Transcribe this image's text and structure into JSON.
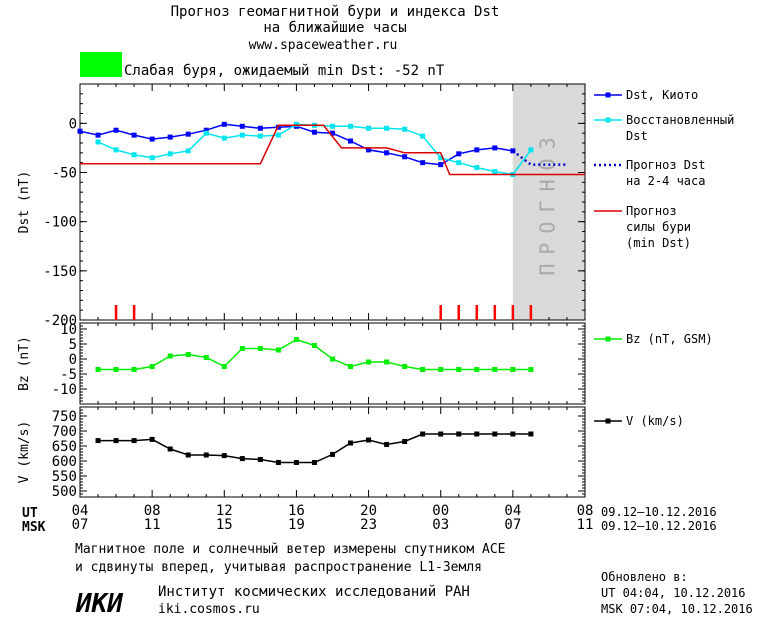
{
  "header": {
    "title_line1": "Прогноз геомагнитной бури и индекса Dst",
    "title_line2": "на ближайшие часы",
    "url": "www.spaceweather.ru",
    "status_color": "#00ff00",
    "status_text": "Слабая буря, ожидаемый min Dst: -52 nT"
  },
  "footer": {
    "note_line1": "Магнитное поле и солнечный ветер измерены спутником ACE",
    "note_line2": "и сдвинуты вперед, учитывая распространение L1-Земля",
    "institute_logo": "ИКИ",
    "institute_name": "Институт космических исследований РАН",
    "institute_url": "iki.cosmos.ru",
    "updated_label": "Обновлено в:",
    "updated_ut": "UT  04:04, 10.12.2016",
    "updated_msk": "MSK 07:04, 10.12.2016"
  },
  "time_axis": {
    "ut_label": "UT",
    "msk_label": "MSK",
    "ut_ticks": [
      "04",
      "08",
      "12",
      "16",
      "20",
      "00",
      "04",
      "08"
    ],
    "msk_ticks": [
      "07",
      "11",
      "15",
      "19",
      "23",
      "03",
      "07",
      "11"
    ],
    "ut_range": "09.12–10.12.2016",
    "msk_range": "09.12–10.12.2016"
  },
  "chart_data": {
    "type": "line",
    "x_units": "hours UT from 09.12.2016 04:00",
    "xlim": [
      0,
      28
    ],
    "forecast_region": [
      24,
      28
    ],
    "forecast_label": "ПРОГНОЗ",
    "panels": [
      {
        "id": "dst",
        "ylabel": "Dst (nT)",
        "ylim": [
          -200,
          40
        ],
        "yticks": [
          0,
          -50,
          -100,
          -150,
          -200
        ],
        "series": [
          {
            "name": "Dst, Киото",
            "color": "#0000ff",
            "marker": "square",
            "style": "solid",
            "x": [
              0,
              1,
              2,
              3,
              4,
              5,
              6,
              7,
              8,
              9,
              10,
              11,
              12,
              13,
              14,
              15,
              16,
              17,
              18,
              19,
              20,
              21,
              22,
              23,
              24
            ],
            "y": [
              -8,
              -12,
              -7,
              -12,
              -16,
              -14,
              -11,
              -7,
              -1,
              -3,
              -5,
              -4,
              -3,
              -9,
              -10,
              -18,
              -27,
              -30,
              -34,
              -40,
              -42,
              -31,
              -27,
              -25,
              -28
            ]
          },
          {
            "name": "Восстановленный Dst",
            "color": "#00e5ee",
            "marker": "square",
            "style": "solid",
            "x": [
              1,
              2,
              3,
              4,
              5,
              6,
              7,
              8,
              9,
              10,
              11,
              12,
              13,
              14,
              15,
              16,
              17,
              18,
              19,
              20,
              21,
              22,
              23,
              24,
              25
            ],
            "y": [
              -19,
              -27,
              -32,
              -35,
              -31,
              -28,
              -10,
              -15,
              -12,
              -13,
              -12,
              -1,
              -2,
              -3,
              -3,
              -5,
              -5,
              -6,
              -13,
              -35,
              -40,
              -45,
              -49,
              -52,
              -27
            ]
          },
          {
            "name": "Прогноз Dst на 2-4 часа",
            "color": "#0000cc",
            "marker": "none",
            "style": "dotted",
            "x": [
              24,
              25,
              26,
              27
            ],
            "y": [
              -28,
              -42,
              -42,
              -42
            ]
          },
          {
            "name": "Прогноз силы бури (min Dst)",
            "color": "#dd0000",
            "marker": "none",
            "style": "solid",
            "x": [
              0,
              10,
              11,
              13.5,
              14.5,
              17,
              18,
              20,
              20.5,
              28
            ],
            "y": [
              -41,
              -41,
              -2,
              -2,
              -25,
              -25,
              -30,
              -30,
              -52,
              -52
            ]
          }
        ],
        "storm_markers_x": [
          2,
          3,
          20,
          21,
          22,
          23,
          24,
          25
        ]
      },
      {
        "id": "bz",
        "ylabel": "Bz (nT)",
        "ylim": [
          -15,
          12
        ],
        "yticks": [
          10,
          5,
          0,
          -5,
          -10
        ],
        "series": [
          {
            "name": "Bz (nT, GSM)",
            "color": "#00ee00",
            "marker": "square",
            "style": "solid",
            "x": [
              1,
              2,
              3,
              4,
              5,
              6,
              7,
              8,
              9,
              10,
              11,
              12,
              13,
              14,
              15,
              16,
              17,
              18,
              19,
              20,
              21,
              22,
              23,
              24,
              25
            ],
            "y": [
              -3.5,
              -3.5,
              -3.5,
              -2.5,
              1,
              1.5,
              0.5,
              -2.5,
              3.5,
              3.5,
              3,
              6.5,
              4.5,
              0,
              -2.5,
              -1,
              -1,
              -2.5,
              -3.5,
              -3.5,
              -3.5,
              -3.5,
              -3.5,
              -3.5,
              -3.5
            ]
          }
        ]
      },
      {
        "id": "v",
        "ylabel": "V (km/s)",
        "ylim": [
          480,
          780
        ],
        "yticks": [
          750,
          700,
          650,
          600,
          550,
          500
        ],
        "series": [
          {
            "name": "V (km/s)",
            "color": "#000000",
            "marker": "square",
            "style": "solid",
            "x": [
              1,
              2,
              3,
              4,
              5,
              6,
              7,
              8,
              9,
              10,
              11,
              12,
              13,
              14,
              15,
              16,
              17,
              18,
              19,
              20,
              21,
              22,
              23,
              24,
              25
            ],
            "y": [
              668,
              668,
              668,
              672,
              640,
              620,
              620,
              618,
              608,
              605,
              595,
              595,
              595,
              622,
              660,
              670,
              655,
              665,
              690,
              690,
              690,
              690,
              690,
              690,
              690
            ]
          }
        ]
      }
    ],
    "legend": [
      {
        "label_lines": [
          "Dst, Киото"
        ],
        "color": "#0000ff",
        "marker": true,
        "style": "solid"
      },
      {
        "label_lines": [
          "Восстановленный",
          "Dst"
        ],
        "color": "#00e5ee",
        "marker": true,
        "style": "solid"
      },
      {
        "label_lines": [
          "Прогноз Dst",
          "на 2-4 часа"
        ],
        "color": "#0000cc",
        "marker": false,
        "style": "dotted"
      },
      {
        "label_lines": [
          "Прогноз",
          "силы бури",
          "(min Dst)"
        ],
        "color": "#dd0000",
        "marker": false,
        "style": "solid"
      }
    ],
    "legend_bz": [
      {
        "label_lines": [
          "Bz (nT, GSM)"
        ],
        "color": "#00ee00",
        "marker": true,
        "style": "solid"
      }
    ],
    "legend_v": [
      {
        "label_lines": [
          "V (km/s)"
        ],
        "color": "#000000",
        "marker": true,
        "style": "solid"
      }
    ]
  }
}
